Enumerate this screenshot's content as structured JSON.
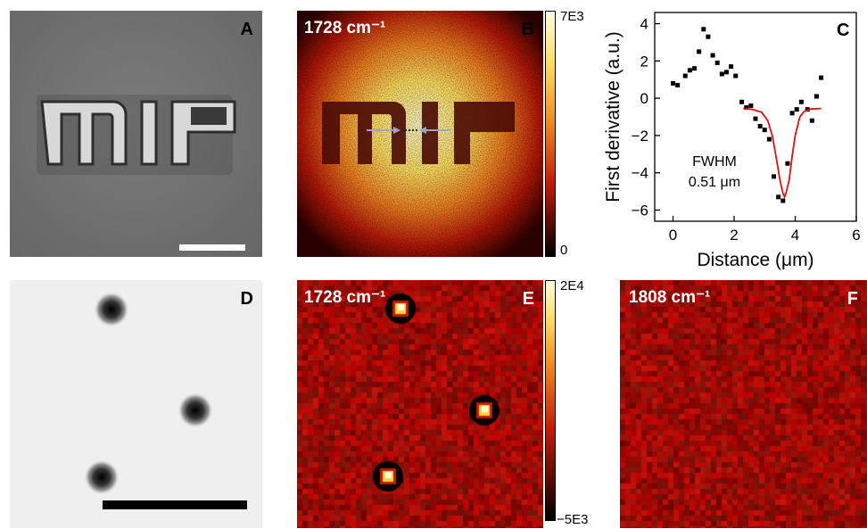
{
  "panels": {
    "A": {
      "label": "A",
      "logo_text": "MIF"
    },
    "B": {
      "label": "B",
      "wavenumber": "1728 cm⁻¹",
      "colorbar_max": "7E3",
      "colorbar_min": "0"
    },
    "C": {
      "label": "C",
      "annotation_line1": "FWHM",
      "annotation_line2": "0.51 μm"
    },
    "D": {
      "label": "D"
    },
    "E": {
      "label": "E",
      "wavenumber": "1728 cm⁻¹",
      "colorbar_max": "2E4",
      "colorbar_min": "−5E3"
    },
    "F": {
      "label": "F",
      "wavenumber": "1808 cm⁻¹"
    }
  },
  "colors": {
    "fit_line": "#e01010",
    "points": "#000000",
    "heat_low": "#000000",
    "heat_mid": "#c41a08",
    "heat_high": "#fffce0"
  },
  "chart_data": {
    "type": "scatter",
    "xlabel": "Distance (μm)",
    "ylabel": "First derivative (a.u.)",
    "xlim": [
      -0.6,
      6
    ],
    "ylim": [
      -6.6,
      4.6
    ],
    "xticks": [
      0,
      2,
      4,
      6
    ],
    "yticks": [
      4,
      2,
      0,
      -2,
      -4,
      -6
    ],
    "series": [
      {
        "type": "scatter",
        "x": [
          0.0,
          0.15,
          0.4,
          0.55,
          0.7,
          0.85,
          1.0,
          1.15,
          1.3,
          1.45,
          1.6,
          1.75,
          1.9,
          2.05,
          2.25,
          2.4,
          2.55,
          2.7,
          2.85,
          3.0,
          3.15,
          3.3,
          3.45,
          3.6,
          3.75,
          3.9,
          4.05,
          4.2,
          4.4,
          4.55,
          4.7,
          4.85
        ],
        "y": [
          0.8,
          0.7,
          1.2,
          1.5,
          1.6,
          2.5,
          3.7,
          3.3,
          2.3,
          1.9,
          1.3,
          1.4,
          1.7,
          1.2,
          -0.2,
          -0.5,
          -0.4,
          -1.1,
          -1.5,
          -1.7,
          -2.2,
          -4.2,
          -5.3,
          -5.5,
          -3.5,
          -0.8,
          -0.6,
          -0.2,
          -0.6,
          -1.2,
          0.1,
          1.1
        ]
      },
      {
        "type": "line",
        "x": [
          2.3,
          2.6,
          2.9,
          3.1,
          3.25,
          3.4,
          3.5,
          3.6,
          3.65,
          3.7,
          3.8,
          3.9,
          4.0,
          4.15,
          4.3,
          4.5,
          4.85
        ],
        "y": [
          -0.55,
          -0.6,
          -0.75,
          -1.2,
          -2.0,
          -3.4,
          -4.4,
          -5.1,
          -5.3,
          -5.1,
          -4.4,
          -3.1,
          -2.0,
          -1.0,
          -0.7,
          -0.58,
          -0.55
        ]
      }
    ]
  }
}
